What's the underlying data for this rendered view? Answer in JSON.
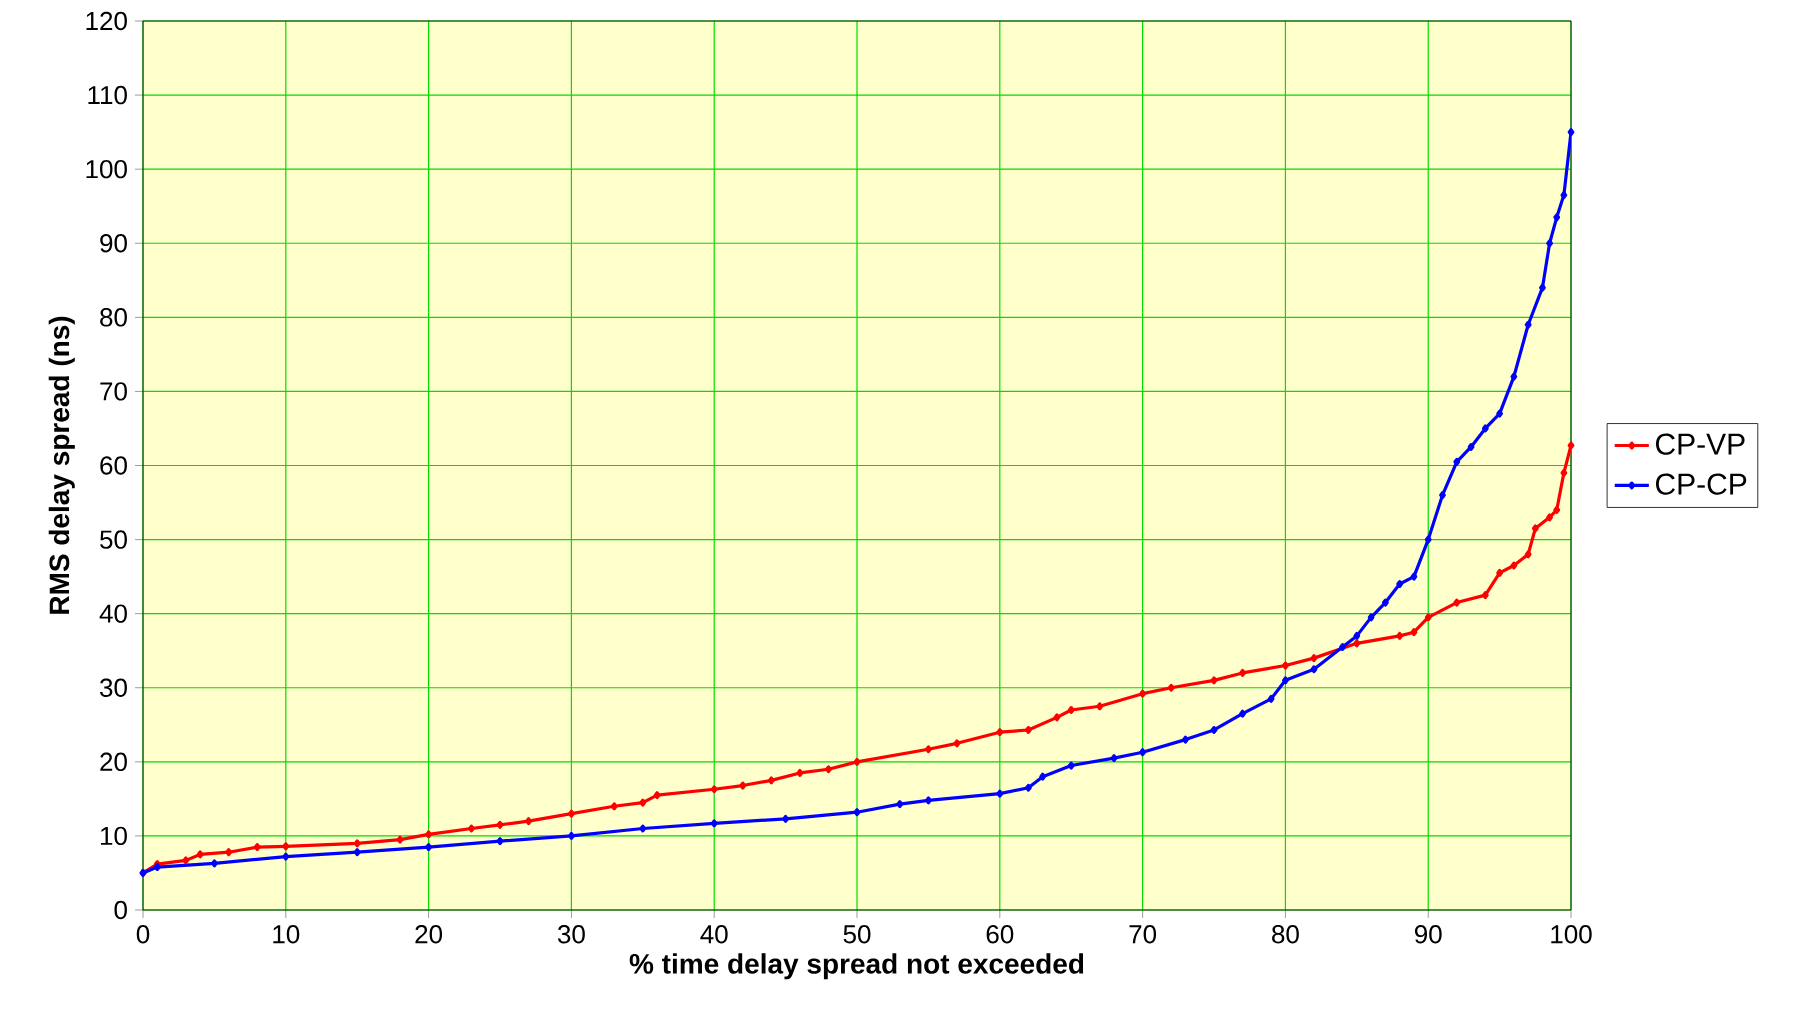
{
  "chart_data": {
    "type": "line",
    "xlabel": "% time delay spread not exceeded",
    "ylabel": "RMS delay spread (ns)",
    "xlim": [
      0,
      100
    ],
    "xticks": [
      0,
      10,
      20,
      30,
      40,
      50,
      60,
      70,
      80,
      90,
      100
    ],
    "ylim": [
      0,
      120
    ],
    "yticks": [
      0,
      10,
      20,
      30,
      40,
      50,
      60,
      70,
      80,
      90,
      100,
      110,
      120
    ],
    "grid": true,
    "legend": "right",
    "marker": "diamond",
    "line_style": "solid",
    "series": [
      {
        "name": "CP-VP",
        "color": "#ff0000",
        "x": [
          0,
          1,
          3,
          4,
          6,
          8,
          10,
          15,
          18,
          20,
          23,
          25,
          27,
          30,
          33,
          35,
          36,
          40,
          42,
          44,
          46,
          48,
          50,
          55,
          57,
          60,
          62,
          64,
          65,
          67,
          70,
          72,
          75,
          77,
          80,
          82,
          85,
          88,
          89,
          90,
          92,
          94,
          95,
          96,
          97,
          97.5,
          98.5,
          99,
          99.5,
          100
        ],
        "values": [
          5,
          6.2,
          6.7,
          7.5,
          7.8,
          8.5,
          8.6,
          9,
          9.5,
          10.2,
          11,
          11.5,
          12,
          13,
          14,
          14.5,
          15.5,
          16.3,
          16.8,
          17.5,
          18.5,
          19,
          20,
          21.7,
          22.5,
          24,
          24.3,
          26,
          27,
          27.5,
          29.2,
          30,
          31,
          32,
          33,
          34,
          36,
          37,
          37.5,
          39.5,
          41.5,
          42.5,
          45.5,
          46.5,
          48,
          51.5,
          53,
          54,
          59,
          62.7
        ]
      },
      {
        "name": "CP-CP",
        "color": "#0000ff",
        "x": [
          0,
          1,
          5,
          10,
          15,
          20,
          25,
          30,
          35,
          40,
          45,
          50,
          53,
          55,
          60,
          62,
          63,
          65,
          68,
          70,
          73,
          75,
          77,
          79,
          80,
          82,
          84,
          85,
          86,
          87,
          88,
          89,
          90,
          91,
          92,
          93,
          94,
          95,
          96,
          97,
          98,
          98.5,
          99,
          99.5,
          100
        ],
        "values": [
          5,
          5.8,
          6.3,
          7.2,
          7.8,
          8.5,
          9.3,
          10,
          11,
          11.7,
          12.3,
          13.2,
          14.3,
          14.8,
          15.7,
          16.5,
          18,
          19.5,
          20.5,
          21.3,
          23,
          24.3,
          26.5,
          28.5,
          31,
          32.5,
          35.5,
          37,
          39.5,
          41.5,
          44,
          45,
          50,
          56,
          60.5,
          62.5,
          65,
          67,
          72,
          79,
          84,
          90,
          93.5,
          96.5,
          105
        ]
      }
    ]
  }
}
